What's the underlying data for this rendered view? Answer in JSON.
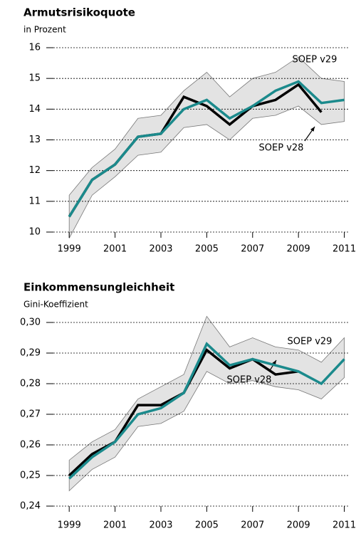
{
  "chart_data": [
    {
      "type": "line",
      "title": "Armutsrisikoquote",
      "subtitle": "in Prozent",
      "x": [
        1999,
        2000,
        2001,
        2002,
        2003,
        2004,
        2005,
        2006,
        2007,
        2008,
        2009,
        2010,
        2011
      ],
      "xlim": [
        1998,
        2011.2
      ],
      "xticks": [
        1999,
        2001,
        2003,
        2005,
        2007,
        2009,
        2011
      ],
      "ylim": [
        10,
        16
      ],
      "yticks": [
        10,
        11,
        12,
        13,
        14,
        15,
        16
      ],
      "grid": true,
      "band": {
        "color": "#e3e3e3",
        "upper": [
          11.2,
          12.1,
          12.7,
          13.7,
          13.8,
          14.6,
          15.2,
          14.4,
          15.0,
          15.2,
          15.7,
          15.0,
          14.9
        ],
        "lower": [
          9.8,
          11.2,
          11.8,
          12.5,
          12.6,
          13.4,
          13.5,
          13.0,
          13.7,
          13.8,
          14.1,
          13.5,
          13.6
        ]
      },
      "series": [
        {
          "name": "SOEP v28",
          "color": "#000000",
          "values": [
            10.5,
            11.7,
            12.2,
            13.1,
            13.2,
            14.4,
            14.1,
            13.5,
            14.1,
            14.3,
            14.8,
            13.9,
            null
          ]
        },
        {
          "name": "SOEP v29",
          "color": "#1b8a8c",
          "values": [
            10.5,
            11.7,
            12.2,
            13.1,
            13.2,
            14.0,
            14.3,
            13.7,
            14.1,
            14.6,
            14.9,
            14.2,
            14.3
          ]
        }
      ]
    },
    {
      "type": "line",
      "title": "Einkommensungleichheit",
      "subtitle": "Gini-Koeffizient",
      "x": [
        1999,
        2000,
        2001,
        2002,
        2003,
        2004,
        2005,
        2006,
        2007,
        2008,
        2009,
        2010,
        2011
      ],
      "xlim": [
        1998,
        2011.2
      ],
      "xticks": [
        1999,
        2001,
        2003,
        2005,
        2007,
        2009,
        2011
      ],
      "ylim": [
        0.24,
        0.3
      ],
      "yticks": [
        {
          "value": 0.24,
          "label": "0,24"
        },
        {
          "value": 0.25,
          "label": "0,25"
        },
        {
          "value": 0.26,
          "label": "0,26"
        },
        {
          "value": 0.27,
          "label": "0,27"
        },
        {
          "value": 0.28,
          "label": "0,28"
        },
        {
          "value": 0.29,
          "label": "0,29"
        },
        {
          "value": 0.3,
          "label": "0,30"
        }
      ],
      "grid": true,
      "band": {
        "color": "#e3e3e3",
        "upper": [
          0.255,
          0.261,
          0.265,
          0.275,
          0.279,
          0.283,
          0.302,
          0.292,
          0.295,
          0.292,
          0.291,
          0.287,
          0.295
        ],
        "lower": [
          0.245,
          0.252,
          0.256,
          0.266,
          0.267,
          0.271,
          0.284,
          0.28,
          0.281,
          0.279,
          0.278,
          0.275,
          0.282
        ]
      },
      "series": [
        {
          "name": "SOEP v28",
          "color": "#000000",
          "values": [
            0.25,
            0.257,
            0.261,
            0.273,
            0.273,
            0.277,
            0.291,
            0.285,
            0.288,
            0.283,
            0.284,
            null,
            null
          ]
        },
        {
          "name": "SOEP v29",
          "color": "#1b8a8c",
          "values": [
            0.249,
            0.256,
            0.261,
            0.27,
            0.272,
            0.277,
            0.293,
            0.286,
            0.288,
            0.286,
            0.284,
            0.28,
            0.288
          ]
        }
      ]
    }
  ]
}
